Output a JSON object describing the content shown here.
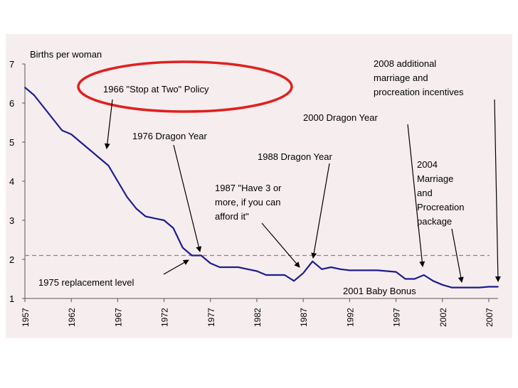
{
  "chart_data": {
    "type": "line",
    "ylabel": "Births per woman",
    "xlabel": "",
    "ylim": [
      1,
      7
    ],
    "xlim": [
      1957,
      2008
    ],
    "yticks": [
      1,
      2,
      3,
      4,
      5,
      6,
      7
    ],
    "xticks": [
      1957,
      1962,
      1967,
      1972,
      1977,
      1982,
      1987,
      1992,
      1997,
      2002,
      2007
    ],
    "grid": false,
    "legend": "none",
    "series": [
      {
        "name": "",
        "color": "#1c1c94",
        "x": [
          1957,
          1958,
          1959,
          1960,
          1961,
          1962,
          1963,
          1964,
          1965,
          1966,
          1967,
          1968,
          1969,
          1970,
          1971,
          1972,
          1973,
          1974,
          1975,
          1976,
          1977,
          1978,
          1979,
          1980,
          1981,
          1982,
          1983,
          1984,
          1985,
          1986,
          1987,
          1988,
          1989,
          1990,
          1991,
          1992,
          1993,
          1994,
          1995,
          1996,
          1997,
          1998,
          1999,
          2000,
          2001,
          2002,
          2003,
          2004,
          2005,
          2006,
          2007,
          2008
        ],
        "y": [
          6.4,
          6.2,
          5.9,
          5.6,
          5.3,
          5.2,
          5.0,
          4.8,
          4.6,
          4.4,
          4.0,
          3.6,
          3.3,
          3.1,
          3.05,
          3.0,
          2.8,
          2.3,
          2.1,
          2.1,
          1.9,
          1.8,
          1.8,
          1.8,
          1.75,
          1.7,
          1.6,
          1.6,
          1.6,
          1.45,
          1.65,
          1.95,
          1.75,
          1.8,
          1.75,
          1.72,
          1.72,
          1.72,
          1.72,
          1.7,
          1.68,
          1.5,
          1.5,
          1.6,
          1.45,
          1.35,
          1.28,
          1.28,
          1.28,
          1.28,
          1.3,
          1.3
        ]
      }
    ],
    "reference_lines": [
      {
        "y": 2.1,
        "color": "#cc6666",
        "style": "dashed"
      }
    ],
    "annotations": [
      {
        "text": "1966 \"Stop at Two\" Policy",
        "x": 1966,
        "y": 4.9,
        "circled": true,
        "circle_color": "#e02020"
      },
      {
        "text": "1976 Dragon Year",
        "x": 1976,
        "y": 2.1
      },
      {
        "text": "1975 replacement level",
        "x": 1975,
        "y": 2.1
      },
      {
        "text": "1987 \"Have 3 or more, if you can afford it\"",
        "x": 1987,
        "y": 1.7
      },
      {
        "text": "1988 Dragon Year",
        "x": 1988,
        "y": 1.95
      },
      {
        "text": "2000 Dragon Year",
        "x": 2000,
        "y": 1.6
      },
      {
        "text": "2004 Marriage and Procreation package",
        "x": 2004,
        "y": 1.3
      },
      {
        "text": "2008 additional marriage and procreation incentives",
        "x": 2008,
        "y": 1.4
      },
      {
        "text": "2001 Baby Bonus",
        "x": 2001,
        "y": 1.3
      }
    ]
  },
  "labels": {
    "ylabel": "Births per woman",
    "stop_at_two": "1966 \"Stop at Two\" Policy",
    "dragon_1976": "1976 Dragon Year",
    "replacement": "1975 replacement level",
    "have3_l1": "1987 \"Have 3 or",
    "have3_l2": "more, if you can",
    "have3_l3": "afford it\"",
    "dragon_1988": "1988 Dragon Year",
    "dragon_2000": "2000 Dragon Year",
    "pkg_l1": "2004",
    "pkg_l2": "Marriage",
    "pkg_l3": "and",
    "pkg_l4": "Procreation",
    "pkg_l5": "package",
    "inc_l1": "2008 additional",
    "inc_l2": "marriage and",
    "inc_l3": "procreation incentives",
    "baby_bonus": "2001 Baby Bonus"
  }
}
